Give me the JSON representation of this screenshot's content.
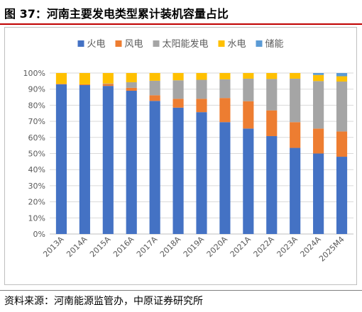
{
  "figure": {
    "title": "图 37：河南主要发电类型累计装机容量占比",
    "source": "资料来源：河南能源监管办，中原证券研究所"
  },
  "chart_data": {
    "type": "bar",
    "stacked": true,
    "percent": true,
    "categories": [
      "2013A",
      "2014A",
      "2015A",
      "2016A",
      "2017A",
      "2018A",
      "2019A",
      "2020A",
      "2021A",
      "2022A",
      "2023A",
      "2024A",
      "2025M4"
    ],
    "ylim": [
      0,
      100
    ],
    "yticks": [
      "0%",
      "10%",
      "20%",
      "30%",
      "40%",
      "50%",
      "60%",
      "70%",
      "80%",
      "90%",
      "100%"
    ],
    "grid": true,
    "legend_position": "top",
    "series": [
      {
        "name": "火电",
        "color": "#4472c4",
        "values": [
          93,
          92.5,
          92,
          89,
          82.7,
          78.5,
          75.7,
          69.5,
          65.5,
          60.8,
          53.5,
          50,
          48
        ]
      },
      {
        "name": "风电",
        "color": "#ed7d31",
        "values": [
          0.3,
          0.5,
          1.2,
          1.8,
          3.5,
          5.5,
          8.3,
          15,
          17,
          16,
          16,
          15.5,
          15.7
        ]
      },
      {
        "name": "太阳能发电",
        "color": "#a5a5a5",
        "values": [
          0,
          0,
          0.3,
          3.5,
          9,
          11.5,
          11.8,
          11.6,
          14,
          19.5,
          27,
          29.5,
          31
        ]
      },
      {
        "name": "水电",
        "color": "#ffc000",
        "values": [
          6.7,
          7,
          6.5,
          5.7,
          4.8,
          4.5,
          4.2,
          3.9,
          3.5,
          3.7,
          3.5,
          3.8,
          3.3
        ]
      },
      {
        "name": "储能",
        "color": "#5b9bd5",
        "values": [
          0,
          0,
          0,
          0,
          0,
          0,
          0,
          0,
          0,
          0,
          0,
          1.2,
          2
        ]
      }
    ]
  }
}
